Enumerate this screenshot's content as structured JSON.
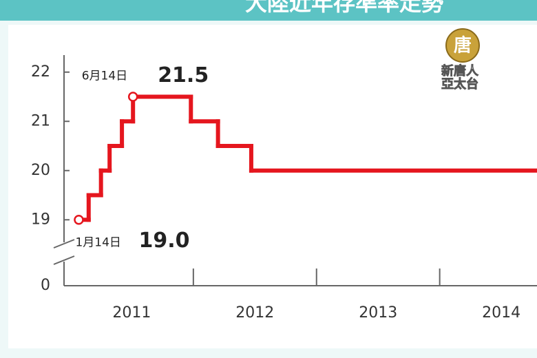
{
  "chart_data": {
    "type": "step",
    "title": "大陸近年存準率走勢",
    "x": [
      2010.57,
      2010.65,
      2010.75,
      2010.82,
      2010.92,
      2011.01,
      2011.48,
      2011.7,
      2011.97,
      2014.29
    ],
    "series": [
      {
        "color": "#e5161e",
        "values": [
          19.0,
          19.5,
          20.0,
          20.5,
          21.0,
          21.5,
          21.0,
          20.5,
          20.0,
          20.0
        ]
      }
    ],
    "xlim": [
      2010.45,
      2014.29
    ],
    "xticks": [
      2011,
      2012,
      2013,
      2014
    ],
    "ylim": [
      0,
      22.3
    ],
    "yticks": [
      0,
      19,
      20,
      21,
      22
    ],
    "axis_break": [
      0,
      18.5
    ],
    "annotations": [
      {
        "text": "6月14日",
        "value": 21.5
      },
      {
        "text": "1月14日",
        "value": 19.0,
        "value_label": "19.0"
      }
    ]
  },
  "logo": {
    "mark": "唐",
    "line1": "新唐人",
    "line2": "亞太台"
  }
}
